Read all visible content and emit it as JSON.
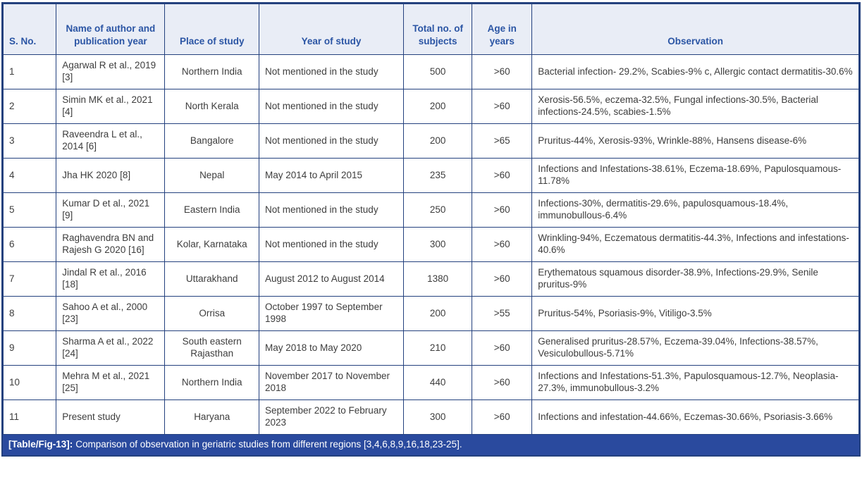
{
  "colors": {
    "border": "#24417e",
    "header_bg": "#e9edf6",
    "header_text": "#2b55a4",
    "body_text": "#3d3d3d",
    "caption_bg": "#2a4a9e",
    "caption_text": "#ffffff"
  },
  "table": {
    "columns": [
      {
        "key": "sno",
        "label": "S. No."
      },
      {
        "key": "author",
        "label": "Name of author and publication year"
      },
      {
        "key": "place",
        "label": "Place of study"
      },
      {
        "key": "year",
        "label": "Year of study"
      },
      {
        "key": "subjects",
        "label": "Total no. of subjects"
      },
      {
        "key": "age",
        "label": "Age in years"
      },
      {
        "key": "observation",
        "label": "Observation"
      }
    ],
    "rows": [
      {
        "sno": "1",
        "author": "Agarwal R et al., 2019 [3]",
        "place": "Northern India",
        "year": "Not mentioned in the study",
        "subjects": "500",
        "age": ">60",
        "observation": "Bacterial infection- 29.2%, Scabies-9% c, Allergic contact dermatitis-30.6%"
      },
      {
        "sno": "2",
        "author": "Simin MK et al., 2021 [4]",
        "place": "North Kerala",
        "year": "Not mentioned in the study",
        "subjects": "200",
        "age": ">60",
        "observation": "Xerosis-56.5%, eczema-32.5%, Fungal infections-30.5%, Bacterial infections-24.5%, scabies-1.5%"
      },
      {
        "sno": "3",
        "author": "Raveendra L et al., 2014 [6]",
        "place": "Bangalore",
        "year": "Not mentioned in the study",
        "subjects": "200",
        "age": ">65",
        "observation": "Pruritus-44%, Xerosis-93%, Wrinkle-88%, Hansens disease-6%"
      },
      {
        "sno": "4",
        "author": "Jha HK 2020 [8]",
        "place": "Nepal",
        "year": "May 2014 to April 2015",
        "subjects": "235",
        "age": ">60",
        "observation": "Infections and Infestations-38.61%, Eczema-18.69%, Papulosquamous-11.78%"
      },
      {
        "sno": "5",
        "author": "Kumar D et al., 2021 [9]",
        "place": "Eastern India",
        "year": "Not mentioned in the study",
        "subjects": "250",
        "age": ">60",
        "observation": "Infections-30%, dermatitis-29.6%, papulosquamous-18.4%, immunobullous-6.4%"
      },
      {
        "sno": "6",
        "author": "Raghavendra BN and Rajesh G 2020 [16]",
        "place": "Kolar, Karnataka",
        "year": "Not mentioned in the study",
        "subjects": "300",
        "age": ">60",
        "observation": "Wrinkling-94%, Eczematous dermatitis-44.3%, Infections and infestations-40.6%"
      },
      {
        "sno": "7",
        "author": "Jindal R et al., 2016 [18]",
        "place": "Uttarakhand",
        "year": "August 2012 to August 2014",
        "subjects": "1380",
        "age": ">60",
        "observation": "Erythematous squamous disorder-38.9%, Infections-29.9%, Senile pruritus-9%"
      },
      {
        "sno": "8",
        "author": "Sahoo A et al., 2000 [23]",
        "place": "Orrisa",
        "year": "October 1997 to September 1998",
        "subjects": "200",
        "age": ">55",
        "observation": "Pruritus-54%, Psoriasis-9%, Vitiligo-3.5%"
      },
      {
        "sno": "9",
        "author": "Sharma A et al., 2022 [24]",
        "place": "South eastern Rajasthan",
        "year": "May 2018 to May 2020",
        "subjects": "210",
        "age": ">60",
        "observation": "Generalised pruritus-28.57%, Eczema-39.04%, Infections-38.57%, Vesiculobullous-5.71%"
      },
      {
        "sno": "10",
        "author": "Mehra M et al., 2021 [25]",
        "place": "Northern India",
        "year": "November 2017 to November 2018",
        "subjects": "440",
        "age": ">60",
        "observation": "Infections and Infestations-51.3%, Papulosquamous-12.7%, Neoplasia-27.3%, immunobullous-3.2%"
      },
      {
        "sno": "11",
        "author": "Present study",
        "place": "Haryana",
        "year": "September 2022 to February 2023",
        "subjects": "300",
        "age": ">60",
        "observation": "Infections and infestation-44.66%, Eczemas-30.66%, Psoriasis-3.66%"
      }
    ],
    "caption": {
      "label": "[Table/Fig-13]:",
      "text": "Comparison of observation in geriatric studies from different regions [3,4,6,8,9,16,18,23-25]."
    }
  }
}
